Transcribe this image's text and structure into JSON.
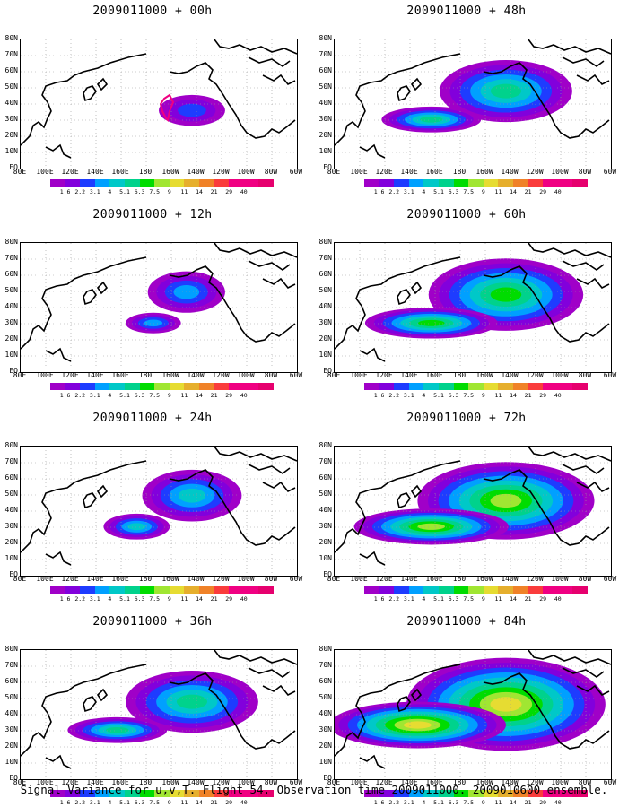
{
  "panels": [
    {
      "title": "2009011000 + 00h",
      "level": 0
    },
    {
      "title": "2009011000 + 48h",
      "level": 3
    },
    {
      "title": "2009011000 + 12h",
      "level": 1
    },
    {
      "title": "2009011000 + 60h",
      "level": 4
    },
    {
      "title": "2009011000 + 24h",
      "level": 2
    },
    {
      "title": "2009011000 + 72h",
      "level": 5
    },
    {
      "title": "2009011000 + 36h",
      "level": 3
    },
    {
      "title": "2009011000 + 84h",
      "level": 6
    }
  ],
  "lat_labels": [
    "80N",
    "70N",
    "60N",
    "50N",
    "40N",
    "30N",
    "20N",
    "10N",
    "EQ"
  ],
  "lon_labels": [
    "80E",
    "100E",
    "120E",
    "140E",
    "160E",
    "180",
    "160W",
    "140W",
    "120W",
    "100W",
    "80W",
    "60W"
  ],
  "colorbar": {
    "labels": [
      "1.6",
      "2.2",
      "3.1",
      "4",
      "5.1",
      "6.3",
      "7.5",
      "9",
      "11",
      "14",
      "21",
      "29",
      "40"
    ],
    "colors": [
      "#a000c8",
      "#8200dc",
      "#1e3cff",
      "#00a0ff",
      "#00c8c8",
      "#00d28c",
      "#00dc00",
      "#a0e632",
      "#e6dc32",
      "#e6af2d",
      "#f08228",
      "#fa3c3c",
      "#f00082"
    ]
  },
  "footer": "Signal Variance for u,v,T. Flight 54. Observation time 2009011000. 2009010600 ensemble."
}
